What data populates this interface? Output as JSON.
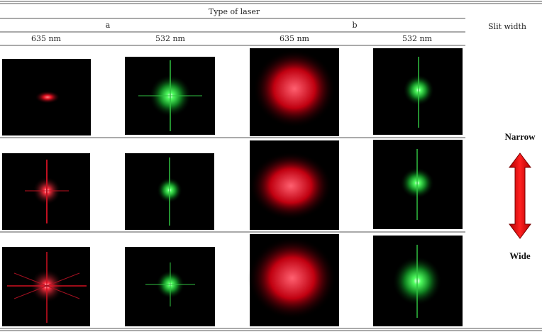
{
  "table": {
    "title": "Type of laser",
    "groups": [
      "a",
      "b"
    ],
    "columns": [
      "635 nm",
      "532 nm",
      "635 nm",
      "532 nm"
    ],
    "side_header": "Slit width",
    "scale": {
      "top": "Narrow",
      "bottom": "Wide"
    }
  }
}
